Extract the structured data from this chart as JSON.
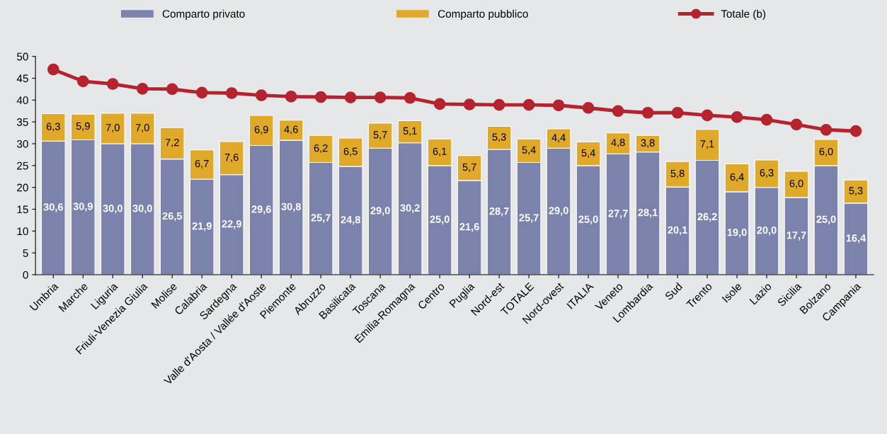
{
  "chart_data": {
    "type": "bar",
    "stacked": true,
    "legend": "top",
    "grid": false,
    "categories": [
      "Umbria",
      "Marche",
      "Liguria",
      "Friuli-Venezia Giulia",
      "Molise",
      "Calabria",
      "Sardegna",
      "Valle d'Aosta / Vallée d'Aoste",
      "Piemonte",
      "Abruzzo",
      "Basilicata",
      "Toscana",
      "Emilia-Romagna",
      "Centro",
      "Puglia",
      "Nord-est",
      "TOTALE",
      "Nord-ovest",
      "ITALIA",
      "Veneto",
      "Lombardia",
      "Sud",
      "Trento",
      "Isole",
      "Lazio",
      "Sicilia",
      "Bolzano",
      "Campania"
    ],
    "ylim": [
      0,
      50
    ],
    "yticks": [
      0,
      5,
      10,
      15,
      20,
      25,
      30,
      35,
      40,
      45,
      50
    ],
    "series": [
      {
        "name": "Comparto privato",
        "color": "#7b83ad",
        "values": [
          30.6,
          30.9,
          30.0,
          30.0,
          26.5,
          21.9,
          22.9,
          29.6,
          30.8,
          25.7,
          24.8,
          29.0,
          30.2,
          25.0,
          21.6,
          28.7,
          25.7,
          29.0,
          25.0,
          27.7,
          28.1,
          20.1,
          26.2,
          19.0,
          20.0,
          17.7,
          25.0,
          16.4
        ],
        "value_labels": [
          "30,6",
          "30,9",
          "30,0",
          "30,0",
          "26,5",
          "21,9",
          "22,9",
          "29,6",
          "30,8",
          "25,7",
          "24,8",
          "29,0",
          "30,2",
          "25,0",
          "21,6",
          "28,7",
          "25,7",
          "29,0",
          "25,0",
          "27,7",
          "28,1",
          "20,1",
          "26,2",
          "19,0",
          "20,0",
          "17,7",
          "25,0",
          "16,4"
        ]
      },
      {
        "name": "Comparto pubblico",
        "color": "#e0a92a",
        "values": [
          6.3,
          5.9,
          7.0,
          7.0,
          7.2,
          6.7,
          7.6,
          6.9,
          4.6,
          6.2,
          6.5,
          5.7,
          5.1,
          6.1,
          5.7,
          5.3,
          5.4,
          4.4,
          5.4,
          4.8,
          3.8,
          5.8,
          7.1,
          6.4,
          6.3,
          6.0,
          6.0,
          5.3
        ],
        "value_labels": [
          "6,3",
          "5,9",
          "7,0",
          "7,0",
          "7,2",
          "6,7",
          "7,6",
          "6,9",
          "4,6",
          "6,2",
          "6,5",
          "5,7",
          "5,1",
          "6,1",
          "5,7",
          "5,3",
          "5,4",
          "4,4",
          "5,4",
          "4,8",
          "3,8",
          "5,8",
          "7,1",
          "6,4",
          "6,3",
          "6,0",
          "6,0",
          "5,3"
        ]
      },
      {
        "name": "Totale (b)",
        "type": "line",
        "color": "#b5232f",
        "marker": "circle",
        "line_style": "solid",
        "values": [
          47.0,
          44.3,
          43.7,
          42.6,
          42.5,
          41.7,
          41.6,
          41.1,
          40.8,
          40.7,
          40.6,
          40.6,
          40.5,
          39.1,
          39.0,
          38.9,
          38.9,
          38.8,
          38.2,
          37.5,
          37.1,
          37.1,
          36.5,
          36.1,
          35.5,
          34.4,
          33.2,
          32.9
        ]
      }
    ]
  }
}
